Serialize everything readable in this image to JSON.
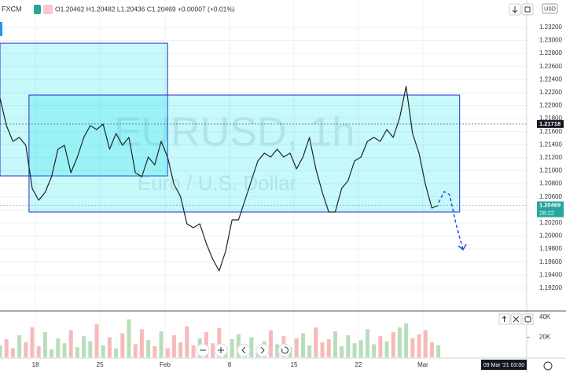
{
  "header": {
    "exchange": "FXCM",
    "ohlc": "O1.20462 H1.20482 L1.20436 C1.20469 +0.00007 (+0.01%)",
    "currency": "USD"
  },
  "watermark": {
    "symbol": "EURUSD, 1h",
    "description": "Euro / U.S. Dollar"
  },
  "chart_data": {
    "type": "line",
    "color": "#222222",
    "x": [
      0,
      1,
      2,
      3,
      4,
      5,
      6,
      7,
      8,
      9,
      10,
      11,
      12,
      13,
      14,
      15,
      16,
      17,
      18,
      19,
      20,
      21,
      22,
      23,
      24,
      25,
      26,
      27,
      28,
      29,
      30,
      31,
      32,
      33,
      34,
      35,
      36,
      37,
      38,
      39,
      40,
      41,
      42,
      43,
      44,
      45,
      46,
      47,
      48,
      49,
      50,
      51,
      52,
      53,
      54,
      55,
      56,
      57,
      58,
      59,
      60,
      61,
      62,
      63,
      64,
      65,
      66,
      67,
      68
    ],
    "values": [
      1.22114,
      1.21692,
      1.21451,
      1.21512,
      1.21391,
      1.20728,
      1.20548,
      1.20668,
      1.20909,
      1.21331,
      1.21391,
      1.20969,
      1.2121,
      1.21512,
      1.21692,
      1.21632,
      1.21716,
      1.21331,
      1.21572,
      1.21391,
      1.21512,
      1.20969,
      1.20909,
      1.2121,
      1.2109,
      1.21451,
      1.2121,
      1.20789,
      1.20608,
      1.20186,
      1.20126,
      1.20186,
      1.19885,
      1.19644,
      1.19463,
      1.19765,
      1.20247,
      1.20247,
      1.20548,
      1.20849,
      1.2115,
      1.21271,
      1.2121,
      1.21331,
      1.2121,
      1.21271,
      1.2103,
      1.2121,
      1.21512,
      1.2103,
      1.20668,
      1.20367,
      1.20367,
      1.20728,
      1.20849,
      1.2115,
      1.2121,
      1.21451,
      1.21512,
      1.21451,
      1.21632,
      1.21512,
      1.21813,
      1.22295,
      1.21572,
      1.21271,
      1.20789,
      1.20427,
      1.20469
    ],
    "xlim": [
      0,
      81.7
    ],
    "xticks": [
      {
        "value": 5.5,
        "label": "18"
      },
      {
        "value": 15.5,
        "label": "25"
      },
      {
        "value": 25.6,
        "label": "Feb"
      },
      {
        "value": 35.6,
        "label": "8"
      },
      {
        "value": 45.6,
        "label": "15"
      },
      {
        "value": 55.6,
        "label": "22"
      },
      {
        "value": 65.6,
        "label": "Mar"
      }
    ],
    "ylim": [
      1.18861,
      1.2362
    ],
    "yticks": [
      {
        "value": 1.192,
        "label": "1.19200"
      },
      {
        "value": 1.194,
        "label": "1.19400"
      },
      {
        "value": 1.196,
        "label": "1.19600"
      },
      {
        "value": 1.198,
        "label": "1.19800"
      },
      {
        "value": 1.2,
        "label": "1.20000"
      },
      {
        "value": 1.202,
        "label": "1.20200"
      },
      {
        "value": 1.204,
        "label": "1.20400"
      },
      {
        "value": 1.206,
        "label": "1.20600"
      },
      {
        "value": 1.208,
        "label": "1.20800"
      },
      {
        "value": 1.21,
        "label": "1.21000"
      },
      {
        "value": 1.212,
        "label": "1.21200"
      },
      {
        "value": 1.214,
        "label": "1.21400"
      },
      {
        "value": 1.216,
        "label": "1.21600"
      },
      {
        "value": 1.218,
        "label": "1.21800"
      },
      {
        "value": 1.22,
        "label": "1.22000"
      },
      {
        "value": 1.222,
        "label": "1.22200"
      },
      {
        "value": 1.224,
        "label": "1.22400"
      },
      {
        "value": 1.226,
        "label": "1.22600"
      },
      {
        "value": 1.228,
        "label": "1.22800"
      },
      {
        "value": 1.23,
        "label": "1.23000"
      },
      {
        "value": 1.232,
        "label": "1.23200"
      }
    ],
    "grid": true,
    "zones": [
      {
        "x": [
          0,
          26
        ],
        "y": [
          1.20921,
          1.22957
        ],
        "color": "#00e0e8"
      },
      {
        "x": [
          4.5,
          71.3
        ],
        "y": [
          1.20367,
          1.22162
        ],
        "color": "#00e0e8"
      }
    ],
    "price_lines": [
      {
        "value": 1.21718,
        "label": "1.21718",
        "color": "#131722"
      },
      {
        "value": 1.20469,
        "label": "1.20469",
        "countdown": "28:22",
        "color": "#26a69a"
      }
    ],
    "volume": {
      "values": [
        12000,
        18000,
        9000,
        22000,
        15000,
        30000,
        11000,
        25000,
        8000,
        19000,
        14000,
        27000,
        10000,
        21000,
        16000,
        33000,
        12000,
        20000,
        9000,
        24000,
        38000,
        13000,
        28000,
        17000,
        11000,
        26000,
        9000,
        22000,
        15000,
        31000,
        12000,
        19000,
        25000,
        14000,
        29000,
        10000,
        18000,
        23000,
        11000,
        20000,
        9000,
        16000,
        27000,
        13000,
        21000,
        10000,
        19000,
        24000,
        12000,
        30000,
        15000,
        18000,
        26000,
        11000,
        22000,
        14000,
        17000,
        28000,
        13000,
        21000,
        16000,
        25000,
        30000,
        34000,
        19000,
        23000,
        27000,
        15000,
        12000
      ],
      "ylim": [
        0,
        45490
      ],
      "yticks": [
        {
          "value": 20000,
          "label": "20K"
        },
        {
          "value": 40000,
          "label": "40K"
        }
      ],
      "up_color": "#a5d6a7",
      "down_color": "#f5a9a7"
    },
    "cursor_time": "09 Mar '21 03:00"
  }
}
